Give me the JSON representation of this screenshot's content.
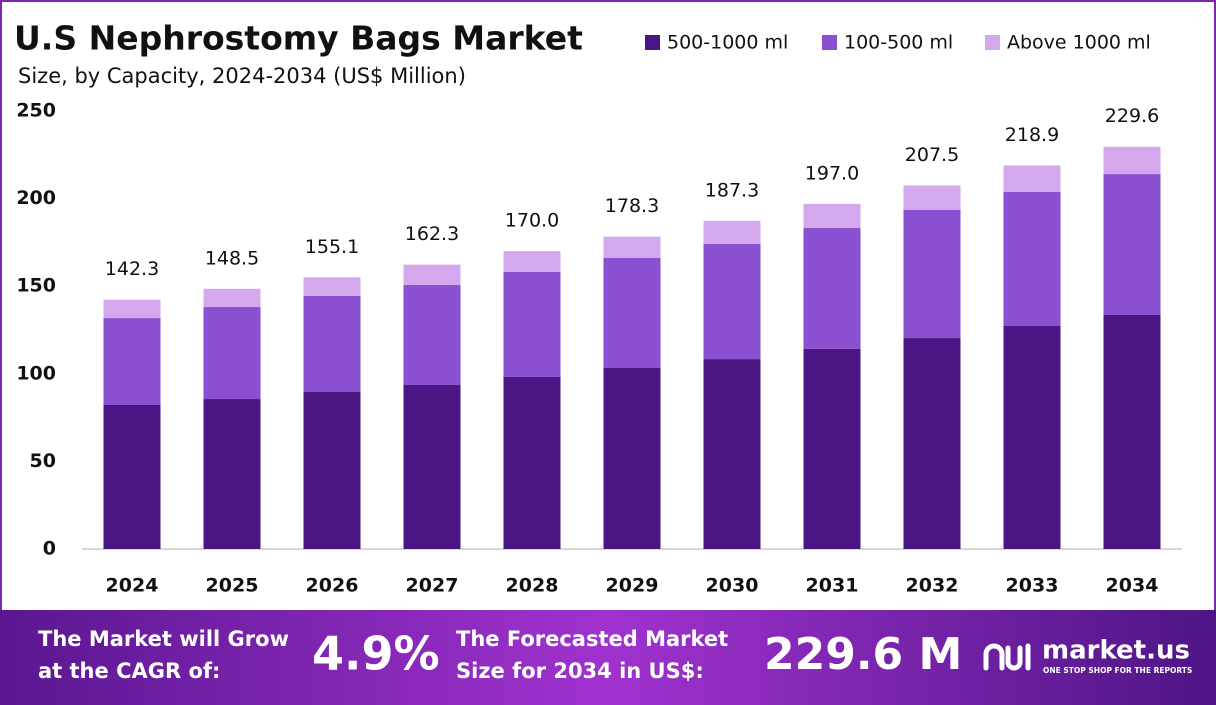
{
  "chart_data": {
    "type": "stacked-bar",
    "title": "U.S Nephrostomy Bags Market",
    "subtitle": "Size, by  Capacity, 2024-2034 (US$ Million)",
    "categories": [
      "2024",
      "2025",
      "2026",
      "2027",
      "2028",
      "2029",
      "2030",
      "2031",
      "2032",
      "2033",
      "2034"
    ],
    "series": [
      {
        "name": "500-1000 ml",
        "color": "#4b1683",
        "values": [
          82.2,
          85.6,
          89.6,
          93.6,
          98.2,
          103.3,
          108.4,
          114.2,
          120.4,
          127.3,
          133.6
        ]
      },
      {
        "name": "100-500 ml",
        "color": "#8b4fd1",
        "values": [
          49.6,
          52.5,
          54.8,
          57.1,
          59.9,
          62.8,
          65.7,
          69.0,
          73.1,
          76.5,
          80.4
        ]
      },
      {
        "name": "Above 1000 ml",
        "color": "#d4a8ec",
        "values": [
          10.5,
          10.4,
          10.7,
          11.6,
          11.9,
          12.2,
          13.2,
          13.8,
          14.0,
          15.1,
          15.6
        ]
      }
    ],
    "totals": [
      142.3,
      148.5,
      155.1,
      162.3,
      170.0,
      178.3,
      187.3,
      197.0,
      207.5,
      218.9,
      229.6
    ],
    "total_labels": [
      "142.3",
      "148.5",
      "155.1",
      "162.3",
      "170.0",
      "178.3",
      "187.3",
      "197.0",
      "207.5",
      "218.9",
      "229.6"
    ],
    "ylim": [
      0,
      250
    ],
    "yticks": [
      0,
      50,
      100,
      150,
      200,
      250
    ],
    "grid": false,
    "legend": "top-right"
  },
  "footer": {
    "cagr_text": [
      "The Market will Grow",
      "at the CAGR of:"
    ],
    "cagr_value": "4.9%",
    "forecast_text": [
      "The Forecasted Market",
      "Size for 2034 in US$:"
    ],
    "forecast_value": "229.6 M",
    "brand": "market.us",
    "tagline": "ONE STOP SHOP FOR THE REPORTS"
  }
}
